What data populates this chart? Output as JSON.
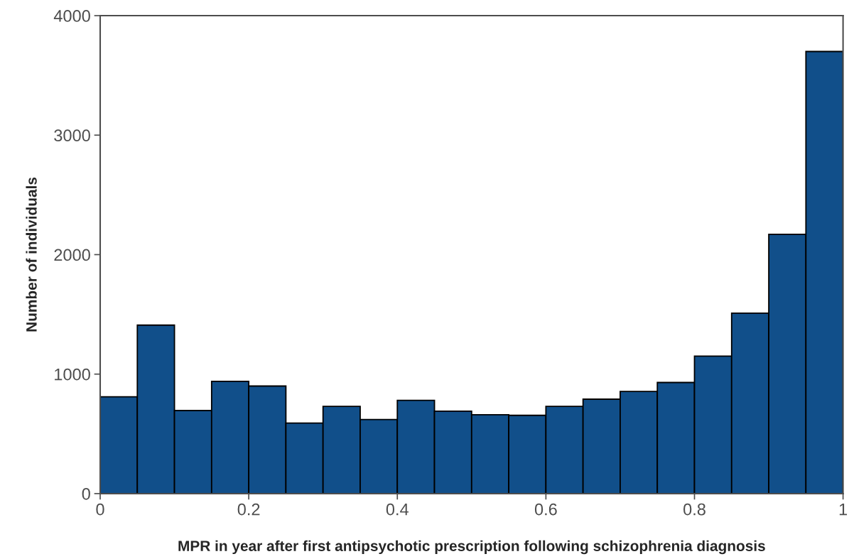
{
  "chart_data": {
    "type": "histogram",
    "xlabel": "MPR in year after first antipsychotic prescription following schizophrenia diagnosis",
    "ylabel": "Number of individuals",
    "bins": [
      0,
      0.05,
      0.1,
      0.15,
      0.2,
      0.25,
      0.3,
      0.35,
      0.4,
      0.45,
      0.5,
      0.55,
      0.6,
      0.65,
      0.7,
      0.75,
      0.8,
      0.85,
      0.9,
      0.95,
      1
    ],
    "values": [
      810,
      1410,
      695,
      940,
      900,
      590,
      730,
      620,
      780,
      690,
      660,
      655,
      730,
      790,
      855,
      930,
      1150,
      1510,
      2170,
      3700
    ],
    "color": "#114f8a",
    "xlim": [
      0,
      1
    ],
    "ylim": [
      0,
      4000
    ],
    "xticks": [
      0,
      {
        "value": 0.2,
        "label": "0.2"
      },
      {
        "value": 0.4,
        "label": "0.4"
      },
      {
        "value": 0.6,
        "label": "0.6"
      },
      {
        "value": 0.8,
        "label": "0.8"
      },
      1
    ],
    "yticks": [
      0,
      1000,
      2000,
      3000,
      4000
    ],
    "grid": false
  }
}
